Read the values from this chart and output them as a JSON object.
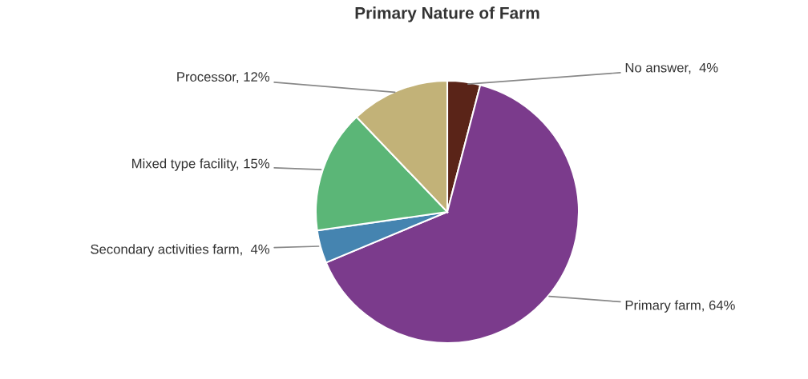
{
  "chart_data": {
    "type": "pie",
    "title": "Primary Nature of Farm",
    "categories": [
      "No answer",
      "Primary farm",
      "Secondary activities farm",
      "Mixed type facility",
      "Processor"
    ],
    "values": [
      4,
      64,
      4,
      15,
      12
    ],
    "value_labels": [
      " 4%",
      "64%",
      " 4%",
      "15%",
      "12%"
    ],
    "colors": [
      "#5a2418",
      "#7b3b8c",
      "#4584b0",
      "#5bb677",
      "#c2b278"
    ],
    "legend": false
  }
}
